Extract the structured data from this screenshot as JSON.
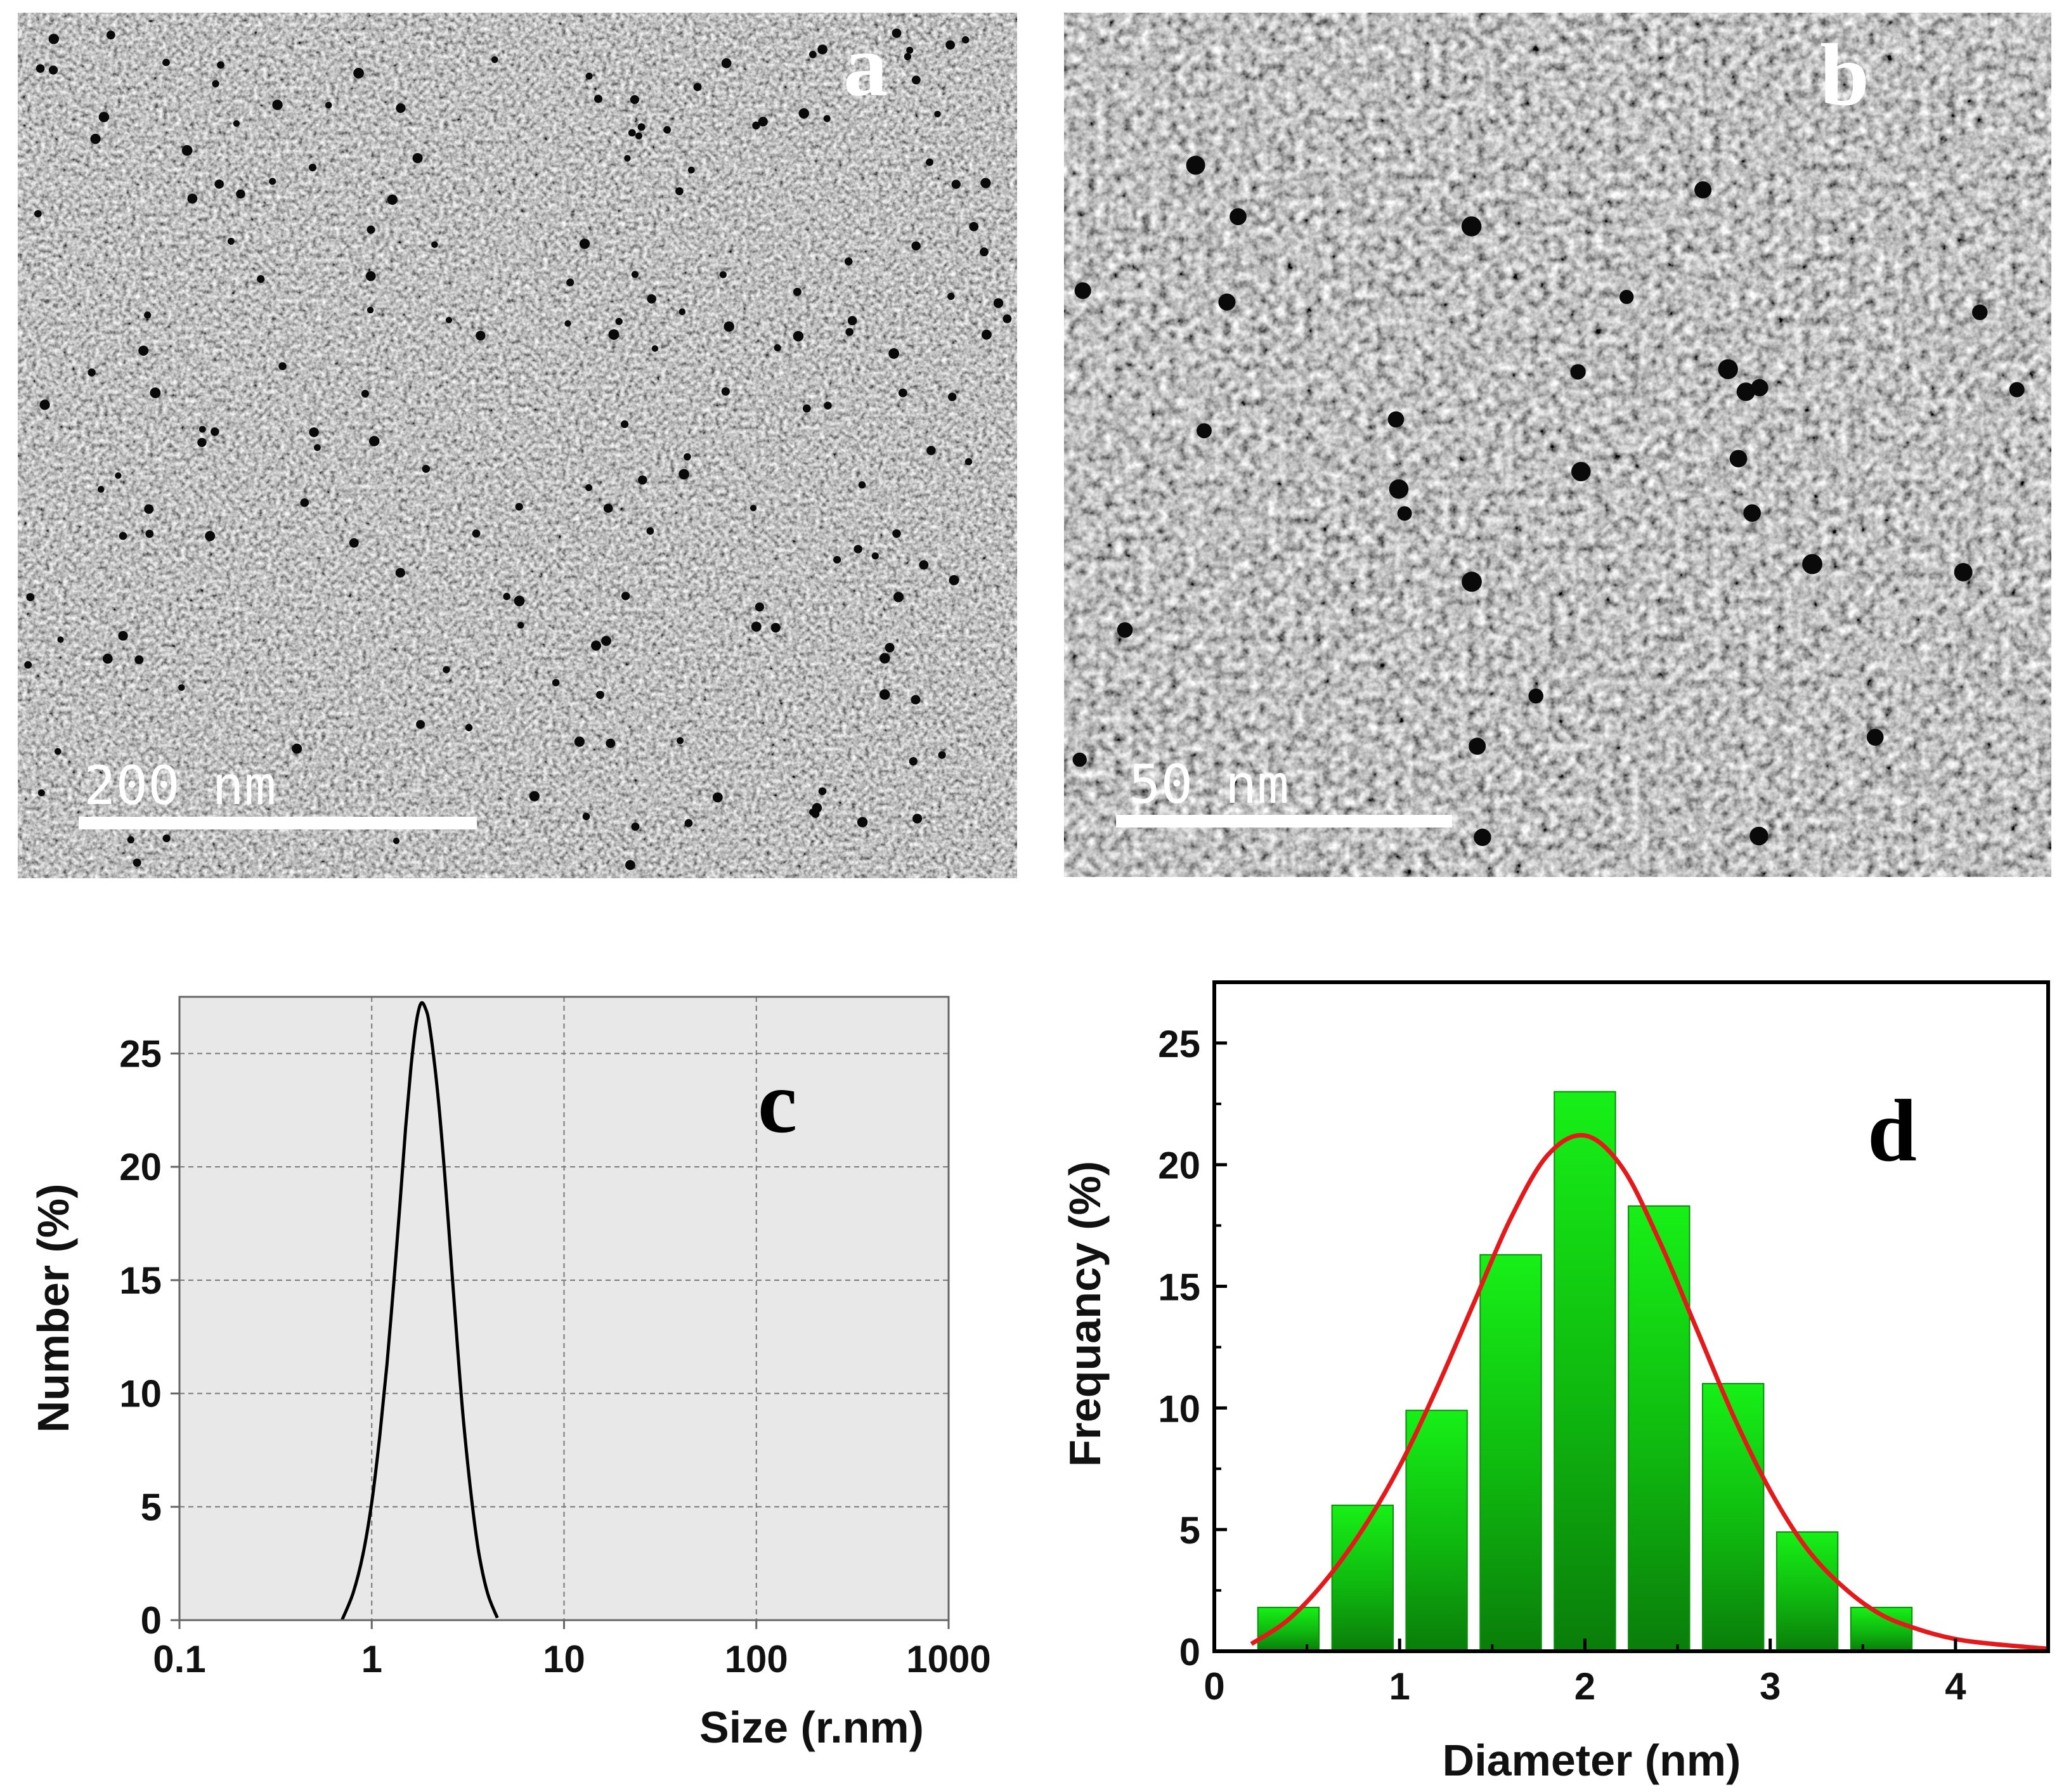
{
  "panels": {
    "a": {
      "letter": "a",
      "scale_bar": "200 nm"
    },
    "b": {
      "letter": "b",
      "scale_bar": "50 nm"
    },
    "c": {
      "letter": "c"
    },
    "d": {
      "letter": "d"
    }
  },
  "colors": {
    "bar_light": "#17f017",
    "bar_dark": "#0a7d0a",
    "fit_curve": "#e31a1c",
    "dls_background": "#e8e8e8",
    "dls_curve": "#000000"
  },
  "chart_data": [
    {
      "id": "c",
      "type": "line",
      "title": "",
      "xlabel": "Size (r.nm)",
      "ylabel": "Number (%)",
      "xscale": "log",
      "xlim": [
        0.1,
        1000
      ],
      "ylim": [
        0,
        27.5
      ],
      "xticks": [
        "0.1",
        "1",
        "10",
        "100",
        "1000"
      ],
      "yticks": [
        "0",
        "5",
        "10",
        "15",
        "20",
        "25"
      ],
      "grid": true,
      "series": [
        {
          "name": "Number distribution",
          "x": [
            0.7,
            0.8,
            0.9,
            1.0,
            1.1,
            1.2,
            1.3,
            1.4,
            1.5,
            1.6,
            1.7,
            1.8,
            1.9,
            2.0,
            2.2,
            2.4,
            2.6,
            2.8,
            3.0,
            3.3,
            3.6,
            4.0,
            4.5
          ],
          "y": [
            0.0,
            1.2,
            2.9,
            5.2,
            8.1,
            11.3,
            14.8,
            18.3,
            21.7,
            24.4,
            26.3,
            27.2,
            27.0,
            26.2,
            23.3,
            19.6,
            15.6,
            11.9,
            8.8,
            5.4,
            3.0,
            1.2,
            0.1
          ]
        }
      ]
    },
    {
      "id": "d",
      "type": "bar",
      "title": "",
      "xlabel": "Diameter (nm)",
      "ylabel": "Frequancy (%)",
      "xlim": [
        0,
        4.5
      ],
      "ylim": [
        0,
        27.5
      ],
      "xticks": [
        "0",
        "1",
        "2",
        "3",
        "4"
      ],
      "yticks": [
        "0",
        "5",
        "10",
        "15",
        "20",
        "25"
      ],
      "grid": false,
      "bar_width": 0.33,
      "categories": [
        0.4,
        0.8,
        1.2,
        1.6,
        2.0,
        2.4,
        2.8,
        3.2,
        3.6
      ],
      "values": [
        1.8,
        6.0,
        9.9,
        16.3,
        23.0,
        18.3,
        11.0,
        4.9,
        1.8
      ],
      "fit": {
        "name": "Gaussian fit",
        "x": [
          0.2,
          0.4,
          0.6,
          0.8,
          1.0,
          1.2,
          1.4,
          1.6,
          1.8,
          2.0,
          2.2,
          2.4,
          2.6,
          2.8,
          3.0,
          3.2,
          3.4,
          3.6,
          3.8,
          4.0,
          4.2,
          4.5
        ],
        "y": [
          0.3,
          1.3,
          2.9,
          5.0,
          7.6,
          10.8,
          14.3,
          17.8,
          20.4,
          21.2,
          19.9,
          16.9,
          13.3,
          9.7,
          6.6,
          4.2,
          2.6,
          1.5,
          0.9,
          0.5,
          0.3,
          0.1
        ]
      }
    }
  ]
}
